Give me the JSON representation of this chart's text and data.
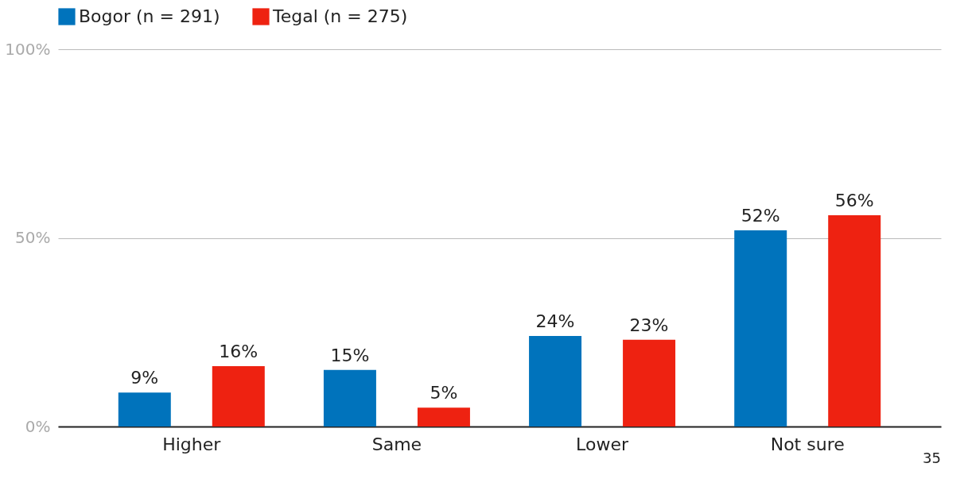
{
  "chart_data": {
    "type": "bar",
    "categories": [
      "Higher",
      "Same",
      "Lower",
      "Not sure"
    ],
    "series": [
      {
        "name": "Bogor (n = 291)",
        "color": "#0073bc",
        "values": [
          9,
          15,
          24,
          52
        ],
        "value_labels": [
          "9%",
          "15%",
          "24%",
          "52%"
        ]
      },
      {
        "name": "Tegal (n = 275)",
        "color": "#ee2211",
        "values": [
          16,
          5,
          23,
          56
        ],
        "value_labels": [
          "16%",
          "5%",
          "23%",
          "56%"
        ]
      }
    ],
    "ylim": [
      0,
      100
    ],
    "yticks": [
      {
        "value": 0,
        "label": "0%"
      },
      {
        "value": 50,
        "label": "50%"
      },
      {
        "value": 100,
        "label": "100%"
      }
    ],
    "grid": "y",
    "legend": "top left",
    "annotations": [
      "35"
    ]
  }
}
